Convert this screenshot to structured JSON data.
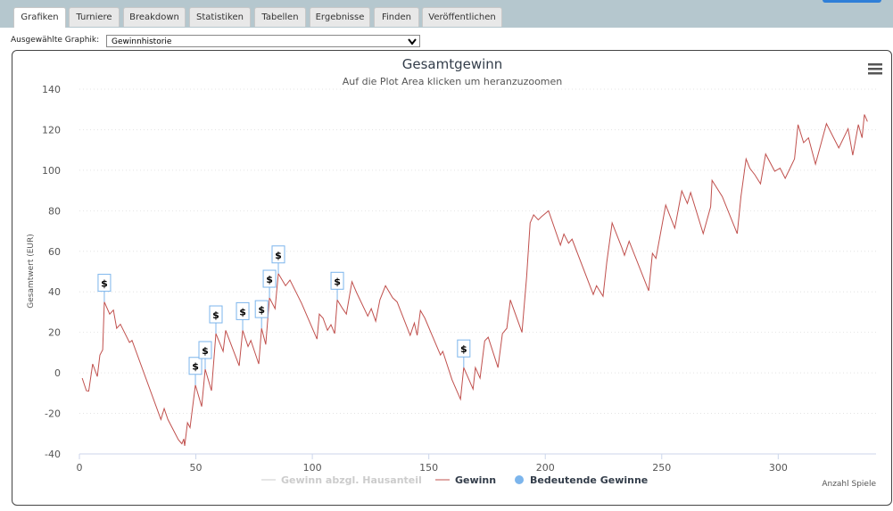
{
  "tabs": [
    "Grafiken",
    "Turniere",
    "Breakdown",
    "Statistiken",
    "Tabellen",
    "Ergebnisse",
    "Finden",
    "Veröffentlichen"
  ],
  "selector": {
    "label": "Ausgewählte Graphik:",
    "value": "Gewinnhistorie"
  },
  "chart_data": {
    "type": "line",
    "title": "Gesamtgewinn",
    "subtitle": "Auf die Plot Area klicken um heranzuzoomen",
    "y_label": "Gesamtwert (EUR)",
    "x_label": "Anzahl Spiele",
    "flag_text": "$",
    "xlim": [
      0,
      342
    ],
    "xticks": [
      0,
      50,
      100,
      150,
      200,
      250,
      300
    ],
    "ylim": [
      -40,
      140
    ],
    "yticks": [
      -40,
      -20,
      0,
      20,
      40,
      60,
      80,
      100,
      120,
      140
    ],
    "grid": true,
    "series": [
      {
        "name": "Gewinn abzgl. Hausanteil",
        "color": "#cccccc",
        "visible": false
      },
      {
        "name": "Gewinn",
        "color": "#c0504d",
        "x": [
          1.2,
          3,
          4,
          5.7,
          7.7,
          8.8,
          10,
          10.7,
          13,
          14.6,
          16,
          17.6,
          21.5,
          22.6,
          35,
          36.4,
          38,
          42.5,
          44,
          44.8,
          45.2,
          46.4,
          47.5,
          49.8,
          52.5,
          54,
          56.7,
          58.6,
          61.7,
          62.8,
          68.6,
          70.1,
          72.4,
          73.6,
          77,
          78.2,
          80,
          81.6,
          84,
          85.4,
          88.5,
          90.4,
          95.4,
          102,
          103,
          104.6,
          106.5,
          108,
          109.6,
          110.7,
          113,
          114.6,
          117,
          119,
          123.8,
          125.3,
          127.2,
          129,
          131.4,
          134.5,
          136.4,
          142,
          143.8,
          145,
          146.4,
          148.3,
          155,
          156,
          160,
          163.6,
          165,
          169,
          170,
          172,
          174,
          175.5,
          179.7,
          181.6,
          183.5,
          185,
          190,
          192,
          193.5,
          195,
          197,
          198.3,
          201.4,
          206.5,
          208,
          210,
          211.5,
          220.6,
          222,
          224.8,
          226.4,
          228.7,
          232.9,
          234,
          236,
          244.4,
          246,
          247.5,
          251.7,
          255.6,
          258.6,
          261,
          262.4,
          267.8,
          271,
          271.6,
          276,
          282.4,
          284,
          286.2,
          287.8,
          290,
          292.4,
          294.6,
          298.5,
          300.8,
          303,
          307,
          308.5,
          310.9,
          313,
          316,
          320.7,
          326,
          330,
          332,
          334.4,
          336,
          337,
          338.3
        ],
        "values": [
          -2.6,
          -8.8,
          -9,
          4.4,
          -1.8,
          8.8,
          11.4,
          35,
          29,
          31,
          22,
          24,
          15,
          16,
          -23,
          -17.6,
          -23,
          -33,
          -35,
          -32.6,
          -36,
          -24.6,
          -27,
          -6,
          -16.6,
          1.8,
          -8.8,
          19.4,
          10.6,
          21,
          3.5,
          21,
          13,
          16,
          4.4,
          22,
          14,
          37,
          31.7,
          49,
          43,
          45.8,
          34.3,
          16.7,
          29,
          27,
          21,
          23.8,
          19.4,
          36,
          31.7,
          29,
          45,
          39.6,
          28,
          31.7,
          25.5,
          36,
          43,
          37,
          35,
          18.5,
          24.6,
          18.5,
          30.8,
          27,
          8.8,
          10.6,
          -3.5,
          -13,
          2.6,
          -8,
          2.6,
          -2.6,
          15.8,
          17.6,
          2.6,
          19.4,
          22,
          36,
          20,
          47.5,
          74,
          78,
          75.5,
          77,
          80,
          63,
          68.5,
          64,
          66,
          38.7,
          43,
          37.8,
          54.6,
          74,
          61.7,
          58,
          65,
          40.5,
          59,
          56.5,
          82.8,
          71.4,
          89.8,
          83.6,
          89,
          68.7,
          82,
          95,
          87,
          68.7,
          87,
          105.6,
          101,
          97.7,
          93.3,
          108,
          99.5,
          101,
          96,
          105.6,
          122.5,
          113.6,
          116,
          103,
          123,
          111,
          120.5,
          107.4,
          122.5,
          116,
          127.5,
          124
        ]
      },
      {
        "name": "Bedeutende Gewinne",
        "color": "#7cb5ec",
        "x": [
          10.7,
          49.8,
          54,
          58.6,
          70.1,
          78.2,
          81.6,
          85.4,
          110.7,
          165
        ],
        "values": [
          35,
          -6,
          1.8,
          19.4,
          21,
          22,
          37,
          49,
          36,
          2.6
        ]
      }
    ]
  }
}
